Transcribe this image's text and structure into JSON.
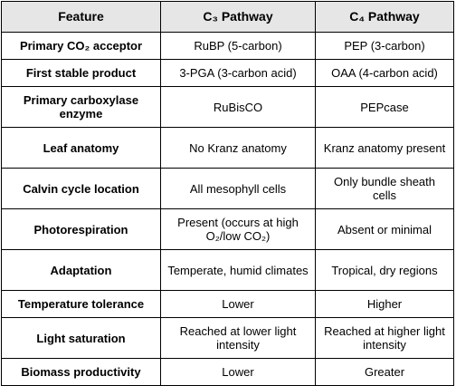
{
  "table": {
    "headers": [
      "Feature",
      "C₃ Pathway",
      "C₄ Pathway"
    ],
    "rows": [
      {
        "feature": "Primary CO₂ acceptor",
        "c3": "RuBP (5-carbon)",
        "c4": "PEP (3-carbon)"
      },
      {
        "feature": "First stable product",
        "c3": "3-PGA (3-carbon acid)",
        "c4": "OAA (4-carbon acid)"
      },
      {
        "feature": "Primary carboxylase enzyme",
        "c3": "RuBisCO",
        "c4": "PEPcase"
      },
      {
        "feature": "Leaf anatomy",
        "c3": "No Kranz anatomy",
        "c4": "Kranz anatomy present"
      },
      {
        "feature": "Calvin cycle location",
        "c3": "All mesophyll cells",
        "c4": "Only bundle sheath cells"
      },
      {
        "feature": "Photorespiration",
        "c3": "Present (occurs at high O₂/low CO₂)",
        "c4": "Absent or minimal"
      },
      {
        "feature": "Adaptation",
        "c3": "Temperate, humid climates",
        "c4": "Tropical, dry regions"
      },
      {
        "feature": "Temperature tolerance",
        "c3": "Lower",
        "c4": "Higher"
      },
      {
        "feature": "Light saturation",
        "c3": "Reached at lower light intensity",
        "c4": "Reached at higher light intensity"
      },
      {
        "feature": "Biomass productivity",
        "c3": "Lower",
        "c4": "Greater"
      }
    ]
  }
}
